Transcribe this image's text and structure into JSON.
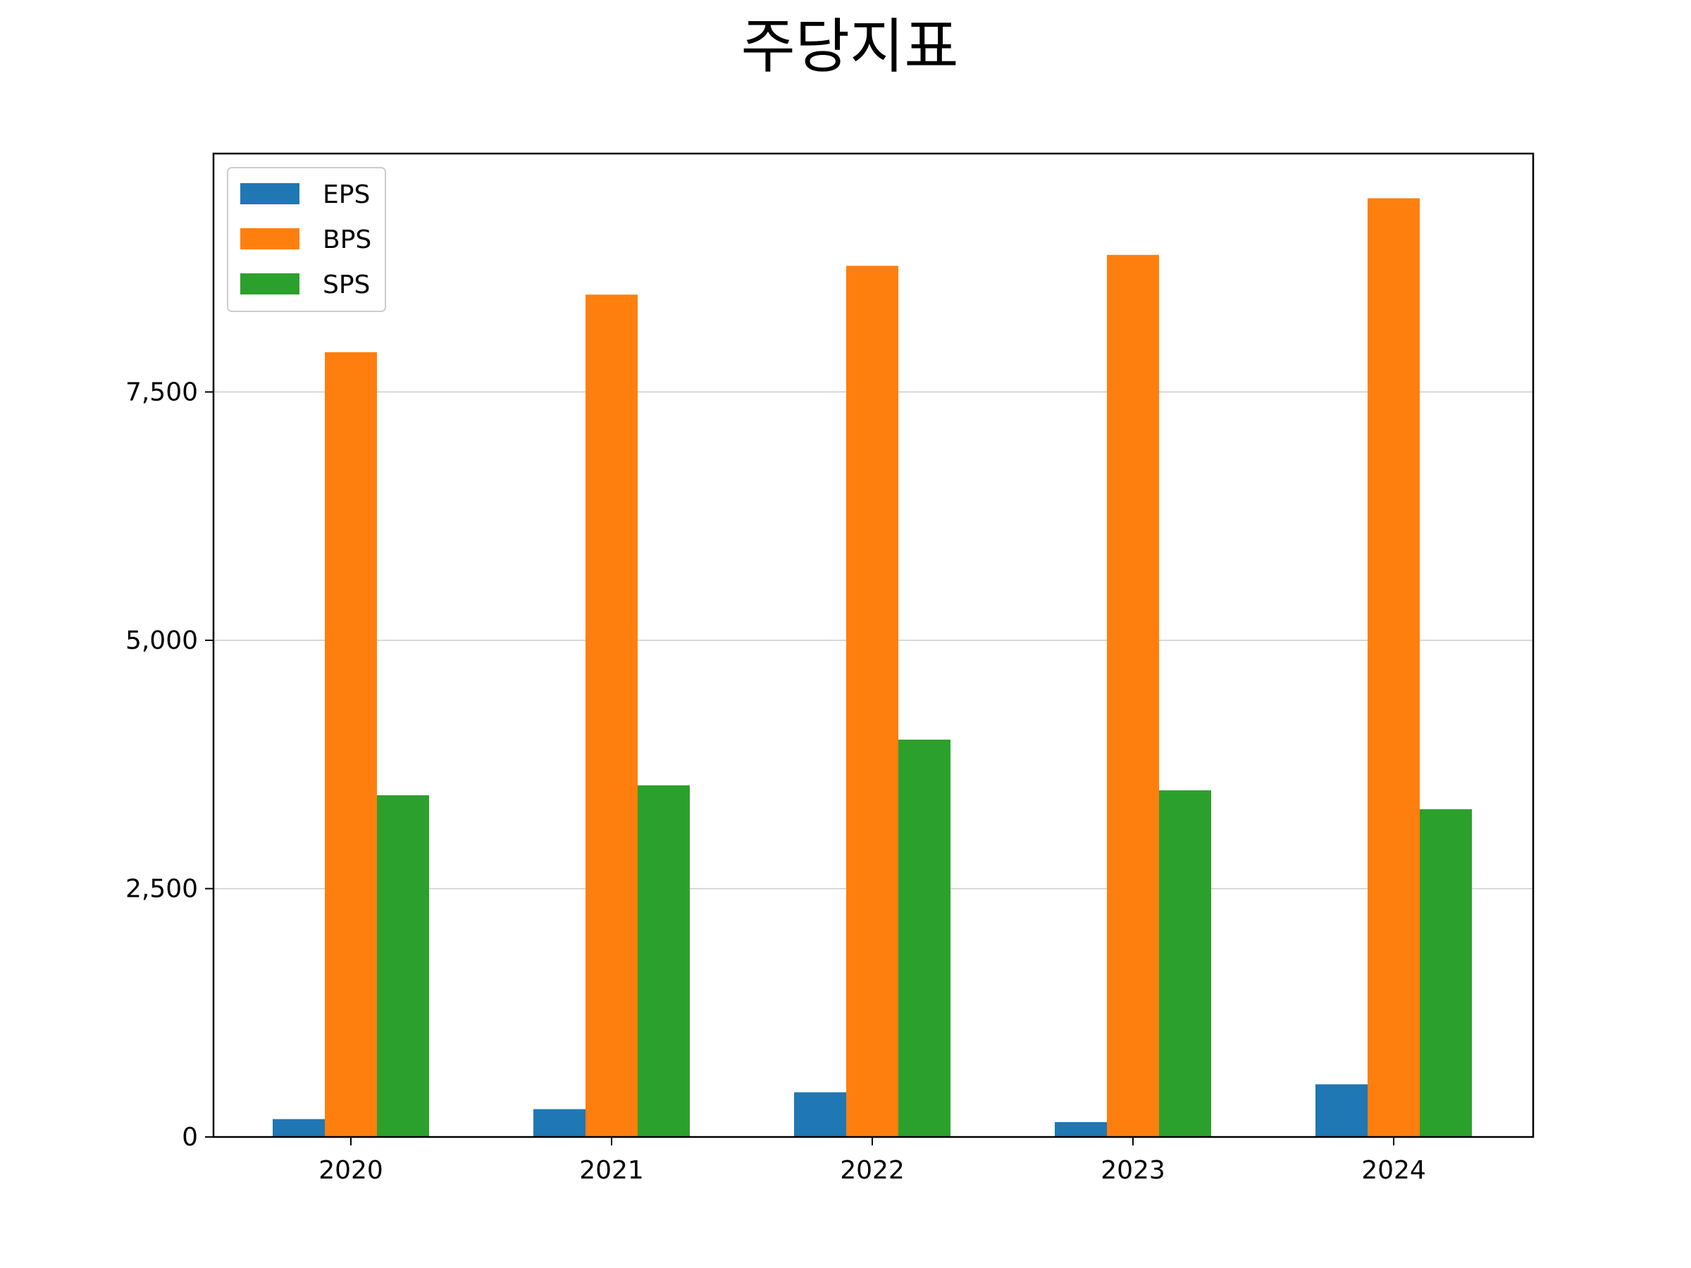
{
  "chart_data": {
    "type": "bar",
    "title": "주당지표",
    "xlabel": "",
    "ylabel": "",
    "categories": [
      "2020",
      "2021",
      "2022",
      "2023",
      "2024"
    ],
    "series": [
      {
        "name": "EPS",
        "color": "#1f77b4",
        "values": [
          180,
          280,
          450,
          150,
          530
        ]
      },
      {
        "name": "BPS",
        "color": "#ff7f0e",
        "values": [
          7900,
          8480,
          8770,
          8880,
          9450
        ]
      },
      {
        "name": "SPS",
        "color": "#2ca02c",
        "values": [
          3440,
          3540,
          4000,
          3490,
          3300
        ]
      }
    ],
    "ylim": [
      0,
      9900
    ],
    "yticks": [
      0,
      2500,
      5000,
      7500
    ],
    "ytick_labels": [
      "0",
      "2,500",
      "5,000",
      "7,500"
    ],
    "grid": "horizontal",
    "legend_position": "top-left"
  }
}
